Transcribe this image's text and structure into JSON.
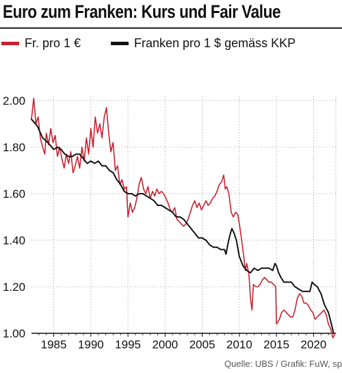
{
  "header": {
    "title": "Euro zum Franken: Kurs und Fair Value"
  },
  "footer": {
    "source": "Quelle: UBS / Grafik: FuW, sp"
  },
  "colors": {
    "red_series": "#c8202e",
    "black_series": "#111111",
    "grid": "#999999"
  },
  "chart_data": {
    "type": "line",
    "title": "Euro zum Franken: Kurs und Fair Value",
    "xlabel": "",
    "ylabel": "",
    "xlim": [
      1982,
      2023
    ],
    "ylim": [
      1.0,
      2.0
    ],
    "x_ticks": [
      1985,
      1990,
      1995,
      2000,
      2005,
      2010,
      2015,
      2020
    ],
    "x_tick_labels": [
      "1985",
      "1990",
      "1995",
      "2000",
      "2005",
      "2010",
      "2015",
      "2020"
    ],
    "y_ticks": [
      1.0,
      1.2,
      1.4,
      1.6,
      1.8,
      2.0
    ],
    "y_tick_labels": [
      "1.00",
      "1.20",
      "1.40",
      "1.60",
      "1.80",
      "2.00"
    ],
    "grid": "dotted",
    "legend_position": "top",
    "series": [
      {
        "name": "Fr. pro 1 €",
        "color": "#c8202e",
        "points": [
          [
            1982.0,
            1.92
          ],
          [
            1982.3,
            2.01
          ],
          [
            1982.6,
            1.9
          ],
          [
            1982.9,
            1.93
          ],
          [
            1983.2,
            1.84
          ],
          [
            1983.5,
            1.8
          ],
          [
            1983.8,
            1.77
          ],
          [
            1984.0,
            1.86
          ],
          [
            1984.3,
            1.81
          ],
          [
            1984.6,
            1.88
          ],
          [
            1984.9,
            1.82
          ],
          [
            1985.2,
            1.85
          ],
          [
            1985.5,
            1.76
          ],
          [
            1985.8,
            1.8
          ],
          [
            1986.1,
            1.75
          ],
          [
            1986.4,
            1.71
          ],
          [
            1986.7,
            1.77
          ],
          [
            1987.0,
            1.73
          ],
          [
            1987.3,
            1.78
          ],
          [
            1987.6,
            1.69
          ],
          [
            1987.9,
            1.72
          ],
          [
            1988.2,
            1.76
          ],
          [
            1988.5,
            1.71
          ],
          [
            1988.8,
            1.8
          ],
          [
            1989.1,
            1.74
          ],
          [
            1989.4,
            1.84
          ],
          [
            1989.7,
            1.77
          ],
          [
            1990.0,
            1.88
          ],
          [
            1990.3,
            1.8
          ],
          [
            1990.6,
            1.93
          ],
          [
            1990.9,
            1.86
          ],
          [
            1991.2,
            1.9
          ],
          [
            1991.5,
            1.84
          ],
          [
            1991.8,
            1.93
          ],
          [
            1992.1,
            1.97
          ],
          [
            1992.4,
            1.86
          ],
          [
            1992.7,
            1.78
          ],
          [
            1993.0,
            1.82
          ],
          [
            1993.3,
            1.7
          ],
          [
            1993.6,
            1.72
          ],
          [
            1993.9,
            1.64
          ],
          [
            1994.2,
            1.66
          ],
          [
            1994.5,
            1.62
          ],
          [
            1994.8,
            1.63
          ],
          [
            1995.0,
            1.5
          ],
          [
            1995.3,
            1.56
          ],
          [
            1995.6,
            1.52
          ],
          [
            1995.9,
            1.54
          ],
          [
            1996.2,
            1.58
          ],
          [
            1996.5,
            1.64
          ],
          [
            1996.8,
            1.67
          ],
          [
            1997.1,
            1.62
          ],
          [
            1997.4,
            1.6
          ],
          [
            1997.7,
            1.63
          ],
          [
            1998.0,
            1.58
          ],
          [
            1998.3,
            1.61
          ],
          [
            1998.6,
            1.59
          ],
          [
            1998.9,
            1.62
          ],
          [
            1999.2,
            1.6
          ],
          [
            1999.5,
            1.61
          ],
          [
            1999.8,
            1.6
          ],
          [
            2000.1,
            1.58
          ],
          [
            2000.4,
            1.56
          ],
          [
            2000.7,
            1.53
          ],
          [
            2001.0,
            1.52
          ],
          [
            2001.3,
            1.54
          ],
          [
            2001.6,
            1.49
          ],
          [
            2001.9,
            1.48
          ],
          [
            2002.2,
            1.47
          ],
          [
            2002.5,
            1.46
          ],
          [
            2002.8,
            1.47
          ],
          [
            2003.1,
            1.49
          ],
          [
            2003.4,
            1.52
          ],
          [
            2003.7,
            1.55
          ],
          [
            2004.0,
            1.57
          ],
          [
            2004.3,
            1.54
          ],
          [
            2004.6,
            1.56
          ],
          [
            2004.9,
            1.53
          ],
          [
            2005.2,
            1.55
          ],
          [
            2005.5,
            1.57
          ],
          [
            2005.8,
            1.55
          ],
          [
            2006.1,
            1.56
          ],
          [
            2006.4,
            1.58
          ],
          [
            2006.7,
            1.59
          ],
          [
            2007.0,
            1.61
          ],
          [
            2007.3,
            1.64
          ],
          [
            2007.6,
            1.65
          ],
          [
            2007.9,
            1.68
          ],
          [
            2008.1,
            1.62
          ],
          [
            2008.3,
            1.63
          ],
          [
            2008.6,
            1.6
          ],
          [
            2008.9,
            1.52
          ],
          [
            2009.2,
            1.5
          ],
          [
            2009.5,
            1.52
          ],
          [
            2009.8,
            1.51
          ],
          [
            2010.1,
            1.45
          ],
          [
            2010.4,
            1.38
          ],
          [
            2010.6,
            1.33
          ],
          [
            2010.8,
            1.27
          ],
          [
            2011.0,
            1.3
          ],
          [
            2011.3,
            1.25
          ],
          [
            2011.5,
            1.15
          ],
          [
            2011.7,
            1.1
          ],
          [
            2011.9,
            1.21
          ],
          [
            2012.2,
            1.2
          ],
          [
            2012.5,
            1.2
          ],
          [
            2012.8,
            1.21
          ],
          [
            2013.1,
            1.23
          ],
          [
            2013.4,
            1.24
          ],
          [
            2013.7,
            1.23
          ],
          [
            2014.0,
            1.22
          ],
          [
            2014.3,
            1.22
          ],
          [
            2014.6,
            1.21
          ],
          [
            2014.9,
            1.2
          ],
          [
            2015.0,
            1.04
          ],
          [
            2015.2,
            1.05
          ],
          [
            2015.4,
            1.06
          ],
          [
            2015.7,
            1.09
          ],
          [
            2016.0,
            1.1
          ],
          [
            2016.3,
            1.09
          ],
          [
            2016.6,
            1.08
          ],
          [
            2016.9,
            1.07
          ],
          [
            2017.2,
            1.07
          ],
          [
            2017.5,
            1.1
          ],
          [
            2017.8,
            1.15
          ],
          [
            2018.1,
            1.17
          ],
          [
            2018.4,
            1.16
          ],
          [
            2018.7,
            1.13
          ],
          [
            2019.0,
            1.13
          ],
          [
            2019.3,
            1.12
          ],
          [
            2019.6,
            1.1
          ],
          [
            2019.9,
            1.09
          ],
          [
            2020.2,
            1.06
          ],
          [
            2020.5,
            1.07
          ],
          [
            2020.8,
            1.08
          ],
          [
            2021.1,
            1.09
          ],
          [
            2021.4,
            1.1
          ],
          [
            2021.7,
            1.08
          ],
          [
            2022.0,
            1.04
          ],
          [
            2022.3,
            1.02
          ],
          [
            2022.6,
            0.98
          ],
          [
            2022.9,
            1.0
          ]
        ]
      },
      {
        "name": "Franken pro 1 $ gemäss KKP",
        "color": "#111111",
        "points": [
          [
            1982.0,
            1.92
          ],
          [
            1982.8,
            1.89
          ],
          [
            1983.5,
            1.84
          ],
          [
            1984.2,
            1.82
          ],
          [
            1985.0,
            1.79
          ],
          [
            1985.5,
            1.8
          ],
          [
            1986.0,
            1.79
          ],
          [
            1986.5,
            1.77
          ],
          [
            1987.0,
            1.76
          ],
          [
            1987.5,
            1.76
          ],
          [
            1988.0,
            1.77
          ],
          [
            1988.5,
            1.77
          ],
          [
            1989.0,
            1.75
          ],
          [
            1989.5,
            1.73
          ],
          [
            1990.0,
            1.74
          ],
          [
            1990.5,
            1.73
          ],
          [
            1991.0,
            1.74
          ],
          [
            1991.5,
            1.72
          ],
          [
            1992.0,
            1.72
          ],
          [
            1992.5,
            1.7
          ],
          [
            1993.0,
            1.69
          ],
          [
            1993.5,
            1.66
          ],
          [
            1994.0,
            1.64
          ],
          [
            1994.5,
            1.61
          ],
          [
            1995.0,
            1.6
          ],
          [
            1995.5,
            1.6
          ],
          [
            1996.0,
            1.59
          ],
          [
            1996.5,
            1.6
          ],
          [
            1997.0,
            1.6
          ],
          [
            1997.5,
            1.59
          ],
          [
            1998.0,
            1.58
          ],
          [
            1998.5,
            1.57
          ],
          [
            1999.0,
            1.55
          ],
          [
            1999.5,
            1.55
          ],
          [
            2000.0,
            1.54
          ],
          [
            2000.5,
            1.53
          ],
          [
            2001.0,
            1.52
          ],
          [
            2001.5,
            1.5
          ],
          [
            2002.0,
            1.5
          ],
          [
            2002.5,
            1.49
          ],
          [
            2003.0,
            1.47
          ],
          [
            2003.5,
            1.45
          ],
          [
            2004.0,
            1.43
          ],
          [
            2004.5,
            1.41
          ],
          [
            2005.0,
            1.41
          ],
          [
            2005.5,
            1.4
          ],
          [
            2006.0,
            1.38
          ],
          [
            2006.5,
            1.37
          ],
          [
            2007.0,
            1.37
          ],
          [
            2007.5,
            1.36
          ],
          [
            2008.0,
            1.36
          ],
          [
            2008.2,
            1.34
          ],
          [
            2008.5,
            1.39
          ],
          [
            2008.8,
            1.43
          ],
          [
            2009.0,
            1.45
          ],
          [
            2009.3,
            1.43
          ],
          [
            2009.6,
            1.4
          ],
          [
            2010.0,
            1.33
          ],
          [
            2010.5,
            1.29
          ],
          [
            2011.0,
            1.27
          ],
          [
            2011.5,
            1.26
          ],
          [
            2012.0,
            1.28
          ],
          [
            2012.5,
            1.27
          ],
          [
            2013.0,
            1.28
          ],
          [
            2013.5,
            1.28
          ],
          [
            2014.0,
            1.28
          ],
          [
            2014.5,
            1.27
          ],
          [
            2014.8,
            1.3
          ],
          [
            2015.0,
            1.29
          ],
          [
            2015.3,
            1.26
          ],
          [
            2015.6,
            1.24
          ],
          [
            2016.0,
            1.22
          ],
          [
            2016.5,
            1.22
          ],
          [
            2017.0,
            1.22
          ],
          [
            2017.5,
            1.2
          ],
          [
            2018.0,
            1.19
          ],
          [
            2018.5,
            1.18
          ],
          [
            2019.0,
            1.18
          ],
          [
            2019.5,
            1.18
          ],
          [
            2019.8,
            1.22
          ],
          [
            2020.1,
            1.21
          ],
          [
            2020.5,
            1.2
          ],
          [
            2021.0,
            1.17
          ],
          [
            2021.5,
            1.12
          ],
          [
            2022.0,
            1.09
          ],
          [
            2022.4,
            1.04
          ],
          [
            2022.7,
            1.0
          ]
        ]
      }
    ]
  }
}
